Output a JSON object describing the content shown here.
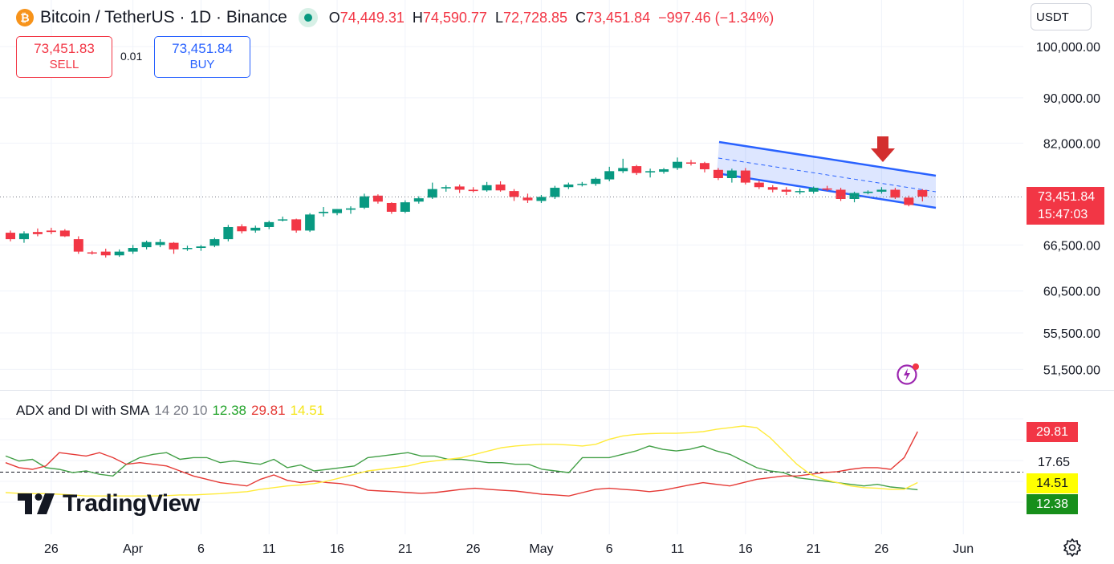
{
  "header": {
    "coin_icon": "bitcoin-icon",
    "symbol": "Bitcoin / TetherUS · 1D · Binance",
    "status_icon": "market-open-dot-icon",
    "open_label": "O",
    "open": "74,449.31",
    "high_label": "H",
    "high": "74,590.77",
    "low_label": "L",
    "low": "72,728.85",
    "close_label": "C",
    "close": "73,451.84",
    "change": "−997.46 (−1.34%)"
  },
  "trade": {
    "sell_price": "73,451.83",
    "sell_label": "SELL",
    "spread": "0.01",
    "buy_price": "73,451.84",
    "buy_label": "BUY"
  },
  "currency_selector": "USDT",
  "price_axis": {
    "labels": [
      "100,000.00",
      "90,000.00",
      "82,000.00",
      "66,500.00",
      "60,500.00",
      "55,500.00",
      "51,500.00"
    ]
  },
  "last_price": {
    "price": "73,451.84",
    "countdown": "15:47:03"
  },
  "indicator": {
    "name": "ADX and DI with SMA",
    "params": "14 20 10",
    "plus_di": "12.38",
    "minus_di": "29.81",
    "adx": "14.51",
    "level": "17.65"
  },
  "time_axis": [
    "26",
    "Apr",
    "6",
    "11",
    "16",
    "21",
    "26",
    "May",
    "6",
    "11",
    "16",
    "21",
    "26",
    "Jun"
  ],
  "branding": {
    "logo_text": "TradingView",
    "logo_icon": "tradingview-logo-icon"
  },
  "icons": {
    "alert": "lightning-alert-icon",
    "settings": "settings-gear-icon"
  },
  "colors": {
    "up": "#089981",
    "down": "#f23645",
    "channel": "#2962ff",
    "plus_di": "#43a047",
    "minus_di": "#e53935",
    "adx": "#ffeb3b"
  },
  "chart_data": [
    {
      "type": "candlestick",
      "title": "Bitcoin / TetherUS · 1D · Binance",
      "x_ticks": [
        "26",
        "Apr",
        "6",
        "11",
        "16",
        "21",
        "26",
        "May",
        "6",
        "11",
        "16",
        "21",
        "26",
        "Jun"
      ],
      "y_ticks": [
        100000,
        90000,
        82000,
        66500,
        60500,
        55500,
        51500
      ],
      "log_scale": true,
      "ylim": [
        49500,
        103000
      ],
      "last_price": 73451.84,
      "candles": [
        {
          "x": "Mar 23",
          "o": 68200,
          "h": 68500,
          "l": 67000,
          "c": 67300
        },
        {
          "x": "Mar 24",
          "o": 67300,
          "h": 68400,
          "l": 66800,
          "c": 68100
        },
        {
          "x": "Mar 25",
          "o": 68300,
          "h": 68800,
          "l": 67700,
          "c": 68000
        },
        {
          "x": "Mar 26",
          "o": 68500,
          "h": 68900,
          "l": 68000,
          "c": 68300
        },
        {
          "x": "Mar 27",
          "o": 68500,
          "h": 68700,
          "l": 67600,
          "c": 67700
        },
        {
          "x": "Mar 28",
          "o": 67300,
          "h": 67700,
          "l": 65300,
          "c": 65600
        },
        {
          "x": "Mar 29",
          "o": 65500,
          "h": 65700,
          "l": 65200,
          "c": 65400
        },
        {
          "x": "Mar 30",
          "o": 65600,
          "h": 66000,
          "l": 64800,
          "c": 65100
        },
        {
          "x": "Mar 31",
          "o": 65100,
          "h": 65900,
          "l": 64900,
          "c": 65600
        },
        {
          "x": "Apr 1",
          "o": 65600,
          "h": 66500,
          "l": 65300,
          "c": 66100
        },
        {
          "x": "Apr 2",
          "o": 66200,
          "h": 67100,
          "l": 65900,
          "c": 66900
        },
        {
          "x": "Apr 3",
          "o": 66500,
          "h": 67300,
          "l": 66200,
          "c": 66900
        },
        {
          "x": "Apr 4",
          "o": 66800,
          "h": 66900,
          "l": 65300,
          "c": 65900
        },
        {
          "x": "Apr 5",
          "o": 66000,
          "h": 66400,
          "l": 65700,
          "c": 66100
        },
        {
          "x": "Apr 6",
          "o": 66100,
          "h": 66500,
          "l": 65700,
          "c": 66300
        },
        {
          "x": "Apr 7",
          "o": 66400,
          "h": 67500,
          "l": 66200,
          "c": 67300
        },
        {
          "x": "Apr 8",
          "o": 67300,
          "h": 69300,
          "l": 67000,
          "c": 69000
        },
        {
          "x": "Apr 9",
          "o": 69100,
          "h": 69400,
          "l": 68100,
          "c": 68400
        },
        {
          "x": "Apr 10",
          "o": 68500,
          "h": 69200,
          "l": 68200,
          "c": 68900
        },
        {
          "x": "Apr 11",
          "o": 69000,
          "h": 69900,
          "l": 68700,
          "c": 69700
        },
        {
          "x": "Apr 12",
          "o": 70000,
          "h": 70500,
          "l": 69800,
          "c": 70100
        },
        {
          "x": "Apr 13",
          "o": 70100,
          "h": 70200,
          "l": 68200,
          "c": 68500
        },
        {
          "x": "Apr 14",
          "o": 68500,
          "h": 71000,
          "l": 68300,
          "c": 70800
        },
        {
          "x": "Apr 15",
          "o": 71000,
          "h": 71900,
          "l": 70500,
          "c": 71200
        },
        {
          "x": "Apr 16",
          "o": 71000,
          "h": 71600,
          "l": 70700,
          "c": 71600
        },
        {
          "x": "Apr 17",
          "o": 71500,
          "h": 72000,
          "l": 70900,
          "c": 71700
        },
        {
          "x": "Apr 18",
          "o": 71800,
          "h": 73900,
          "l": 71600,
          "c": 73500
        },
        {
          "x": "Apr 19",
          "o": 73600,
          "h": 73800,
          "l": 72400,
          "c": 72700
        },
        {
          "x": "Apr 20",
          "o": 72500,
          "h": 72600,
          "l": 70900,
          "c": 71200
        },
        {
          "x": "Apr 21",
          "o": 71200,
          "h": 72900,
          "l": 71000,
          "c": 72600
        },
        {
          "x": "Apr 22",
          "o": 72700,
          "h": 73500,
          "l": 72400,
          "c": 73200
        },
        {
          "x": "Apr 23",
          "o": 73300,
          "h": 75600,
          "l": 73100,
          "c": 74600
        },
        {
          "x": "Apr 24",
          "o": 74700,
          "h": 75200,
          "l": 74200,
          "c": 74900
        },
        {
          "x": "Apr 25",
          "o": 75000,
          "h": 75300,
          "l": 74000,
          "c": 74500
        },
        {
          "x": "Apr 26",
          "o": 74500,
          "h": 74900,
          "l": 74100,
          "c": 74300
        },
        {
          "x": "Apr 27",
          "o": 74400,
          "h": 75700,
          "l": 74200,
          "c": 75200
        },
        {
          "x": "Apr 28",
          "o": 75300,
          "h": 75800,
          "l": 74200,
          "c": 74400
        },
        {
          "x": "Apr 29",
          "o": 74300,
          "h": 74600,
          "l": 72800,
          "c": 73400
        },
        {
          "x": "Apr 30",
          "o": 73300,
          "h": 73900,
          "l": 72500,
          "c": 72900
        },
        {
          "x": "May 1",
          "o": 72800,
          "h": 73700,
          "l": 72500,
          "c": 73400
        },
        {
          "x": "May 2",
          "o": 73400,
          "h": 75100,
          "l": 73100,
          "c": 74800
        },
        {
          "x": "May 3",
          "o": 74900,
          "h": 75600,
          "l": 74600,
          "c": 75300
        },
        {
          "x": "May 4",
          "o": 75300,
          "h": 75700,
          "l": 75000,
          "c": 75400
        },
        {
          "x": "May 5",
          "o": 75400,
          "h": 76400,
          "l": 75100,
          "c": 76200
        },
        {
          "x": "May 6",
          "o": 76100,
          "h": 78100,
          "l": 75800,
          "c": 77400
        },
        {
          "x": "May 7",
          "o": 77400,
          "h": 79400,
          "l": 77100,
          "c": 77900
        },
        {
          "x": "May 8",
          "o": 78200,
          "h": 78400,
          "l": 76800,
          "c": 77100
        },
        {
          "x": "May 9",
          "o": 77200,
          "h": 77800,
          "l": 76400,
          "c": 77400
        },
        {
          "x": "May 10",
          "o": 77300,
          "h": 77900,
          "l": 77000,
          "c": 77700
        },
        {
          "x": "May 11",
          "o": 77900,
          "h": 79600,
          "l": 77600,
          "c": 78900
        },
        {
          "x": "May 12",
          "o": 78800,
          "h": 79200,
          "l": 78300,
          "c": 78600
        },
        {
          "x": "May 13",
          "o": 78700,
          "h": 78900,
          "l": 77200,
          "c": 77700
        },
        {
          "x": "May 14",
          "o": 77600,
          "h": 77900,
          "l": 76000,
          "c": 76300
        },
        {
          "x": "May 15",
          "o": 76300,
          "h": 77800,
          "l": 75600,
          "c": 77500
        },
        {
          "x": "May 16",
          "o": 77500,
          "h": 77900,
          "l": 75300,
          "c": 75600
        },
        {
          "x": "May 17",
          "o": 75600,
          "h": 75900,
          "l": 74600,
          "c": 74900
        },
        {
          "x": "May 18",
          "o": 74900,
          "h": 75200,
          "l": 74100,
          "c": 74500
        },
        {
          "x": "May 19",
          "o": 74500,
          "h": 74900,
          "l": 73700,
          "c": 74200
        },
        {
          "x": "May 20",
          "o": 74200,
          "h": 74700,
          "l": 73800,
          "c": 74300
        },
        {
          "x": "May 21",
          "o": 74200,
          "h": 75000,
          "l": 73900,
          "c": 74800
        },
        {
          "x": "May 22",
          "o": 74700,
          "h": 75100,
          "l": 74300,
          "c": 74500
        },
        {
          "x": "May 23",
          "o": 74500,
          "h": 74800,
          "l": 72800,
          "c": 73100
        },
        {
          "x": "May 24",
          "o": 73100,
          "h": 74200,
          "l": 72600,
          "c": 74000
        },
        {
          "x": "May 25",
          "o": 74000,
          "h": 74400,
          "l": 73800,
          "c": 74200
        },
        {
          "x": "May 26",
          "o": 74200,
          "h": 74900,
          "l": 73900,
          "c": 74500
        },
        {
          "x": "May 27",
          "o": 74500,
          "h": 74800,
          "l": 73100,
          "c": 73300
        },
        {
          "x": "May 28",
          "o": 73300,
          "h": 73600,
          "l": 72000,
          "c": 72200
        },
        {
          "x": "May 29",
          "o": 74449.31,
          "h": 74590.77,
          "l": 72728.85,
          "c": 73451.84
        }
      ]
    },
    {
      "type": "line",
      "title": "ADX and DI with SMA 14 20 10",
      "ylim": [
        8,
        36
      ],
      "level": 17.65,
      "series": [
        {
          "name": "+DI",
          "values": [
            22.5,
            21,
            21.5,
            19,
            18.5,
            17.5,
            18,
            17,
            16.5,
            20,
            22,
            23,
            23.5,
            21.5,
            22,
            22,
            20.5,
            21,
            20.5,
            20,
            21.5,
            19,
            19.8,
            18,
            18.5,
            19,
            19.5,
            22,
            22.5,
            23,
            23.5,
            22.5,
            22.5,
            21.5,
            21.5,
            21,
            20.5,
            20.5,
            20,
            20,
            18.5,
            18,
            17.5,
            22,
            22,
            22,
            23,
            24,
            25.5,
            24.5,
            24,
            24.5,
            25.5,
            24,
            23,
            21,
            19,
            18,
            17.5,
            16,
            15.5,
            15,
            14.5,
            14,
            13.5,
            14,
            13.2,
            12.8,
            12.38
          ]
        },
        {
          "name": "−DI",
          "values": [
            20.5,
            19,
            18.5,
            19.5,
            23.5,
            23,
            22.5,
            23.5,
            22,
            20,
            20.5,
            20,
            19.5,
            18,
            16.5,
            15.5,
            14.5,
            14,
            13.5,
            15.5,
            16.8,
            15.2,
            14.5,
            15,
            14.5,
            14.2,
            13.5,
            12.2,
            12,
            11.8,
            11.5,
            11.3,
            11.5,
            12,
            12.5,
            12.8,
            12.5,
            12.2,
            12,
            11.5,
            11,
            10.8,
            10.5,
            11.5,
            12.5,
            12.8,
            12.5,
            12.2,
            11.8,
            12.2,
            13,
            13.8,
            14.5,
            14,
            13.5,
            14.5,
            15.5,
            16,
            16.5,
            16.5,
            17,
            17.5,
            17.8,
            18.5,
            19,
            19,
            18.5,
            22,
            29.81
          ]
        },
        {
          "name": "ADX",
          "values": [
            11.5,
            11.3,
            11.2,
            11.2,
            11,
            10.8,
            10.5,
            10.5,
            10.5,
            10.5,
            10.5,
            10.5,
            10.6,
            10.8,
            10.8,
            11,
            11.2,
            11.5,
            11.8,
            12.5,
            13,
            13.5,
            13.8,
            14.2,
            15,
            16,
            17,
            18,
            18.5,
            19,
            19.5,
            20.5,
            21,
            21.5,
            22,
            23,
            24,
            25,
            25.5,
            25.8,
            26,
            26,
            25.8,
            25.5,
            26,
            27.5,
            28.5,
            29,
            29.2,
            29.3,
            29.3,
            29.5,
            29.8,
            30.5,
            31,
            31.5,
            31,
            28,
            24,
            20,
            17,
            15.5,
            14.5,
            13.5,
            13,
            12.8,
            12.5,
            12.5,
            14.51
          ]
        }
      ]
    }
  ]
}
